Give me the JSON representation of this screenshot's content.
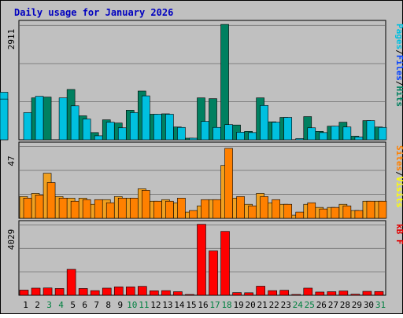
{
  "chart_data": {
    "type": "bar",
    "title": "Daily usage for January 2026",
    "categories": [
      "1",
      "2",
      "3",
      "4",
      "5",
      "6",
      "7",
      "8",
      "9",
      "10",
      "11",
      "12",
      "13",
      "14",
      "15",
      "16",
      "17",
      "18",
      "19",
      "20",
      "21",
      "22",
      "23",
      "24",
      "25",
      "26",
      "27",
      "28",
      "29",
      "30",
      "31"
    ],
    "weekend_days": [
      "3",
      "4",
      "10",
      "11",
      "17",
      "18",
      "24",
      "25",
      "31"
    ],
    "panels": [
      {
        "id": "hits-files-pages",
        "axis_max_label": "2911",
        "ylim": [
          0,
          2911
        ],
        "legend": [
          {
            "text": "Pages",
            "color": "#00c0e0"
          },
          {
            "text": "/",
            "color": "#000000"
          },
          {
            "text": "Files",
            "color": "#0040ff"
          },
          {
            "text": "/",
            "color": "#000000"
          },
          {
            "text": "Hits",
            "color": "#008060"
          }
        ],
        "series": [
          {
            "name": "Hits",
            "color": "#008060",
            "values": [
              0,
              1050,
              1070,
              0,
              1260,
              600,
              180,
              500,
              420,
              740,
              1220,
              640,
              650,
              320,
              40,
              1050,
              1030,
              2890,
              370,
              210,
              1050,
              450,
              560,
              0,
              580,
              210,
              340,
              440,
              90,
              480,
              320
            ]
          },
          {
            "name": "Files",
            "color": "#00c0e0",
            "values": [
              680,
              1090,
              0,
              1050,
              850,
              520,
              100,
              440,
              300,
              680,
              1100,
              640,
              640,
              310,
              40,
              460,
              310,
              380,
              190,
              180,
              860,
              440,
              560,
              30,
              300,
              180,
              340,
              320,
              70,
              480,
              310
            ]
          },
          {
            "name": "Pages",
            "color": "#00c0e0",
            "values": [
              0,
              0,
              1190,
              1020,
              0,
              0,
              0,
              0,
              0,
              0,
              0,
              0,
              0,
              0,
              0,
              0,
              0,
              0,
              0,
              0,
              0,
              0,
              0,
              0,
              0,
              0,
              0,
              0,
              0,
              0,
              0
            ]
          }
        ]
      },
      {
        "id": "visits-sites",
        "axis_max_label": "47",
        "ylim": [
          0,
          47
        ],
        "legend": [
          {
            "text": "Sites",
            "color": "#ff8000"
          },
          {
            "text": "/",
            "color": "#000000"
          },
          {
            "text": "Visits",
            "color": "#ffff00"
          }
        ],
        "series": [
          {
            "name": "Visits",
            "color": "#f0a020",
            "values": [
              14,
              16,
              29,
              14,
              13,
              13,
              9,
              12,
              14,
              13,
              19,
              11,
              12,
              10,
              4,
              8,
              12,
              34,
              13,
              9,
              16,
              10,
              9,
              2,
              9,
              7,
              7,
              9,
              5,
              11,
              11
            ]
          },
          {
            "name": "Sites",
            "color": "#ff8000",
            "values": [
              13,
              15,
              23,
              13,
              11,
              12,
              12,
              10,
              13,
              13,
              18,
              11,
              11,
              13,
              5,
              12,
              12,
              45,
              14,
              8,
              14,
              12,
              9,
              4,
              10,
              6,
              7,
              8,
              5,
              11,
              11
            ]
          }
        ]
      },
      {
        "id": "kbytes",
        "axis_max_label": "4029",
        "ylim": [
          0,
          4029
        ],
        "legend": [
          {
            "text": "kB F",
            "color": "#e00000"
          }
        ],
        "series": [
          {
            "name": "kB F",
            "color": "#ff0000",
            "values": [
              290,
              400,
              410,
              380,
              1460,
              380,
              260,
              400,
              470,
              470,
              500,
              250,
              260,
              200,
              30,
              4000,
              2500,
              3600,
              150,
              140,
              510,
              260,
              280,
              40,
              400,
              180,
              200,
              240,
              60,
              220,
              210
            ]
          }
        ]
      }
    ],
    "colors": {
      "page_bg": "#c0c0c0",
      "plot_bg": "#c0c0c0",
      "title_color": "#0000c0",
      "day_label_weekday": "#000000",
      "day_label_weekend": "#008040"
    }
  }
}
